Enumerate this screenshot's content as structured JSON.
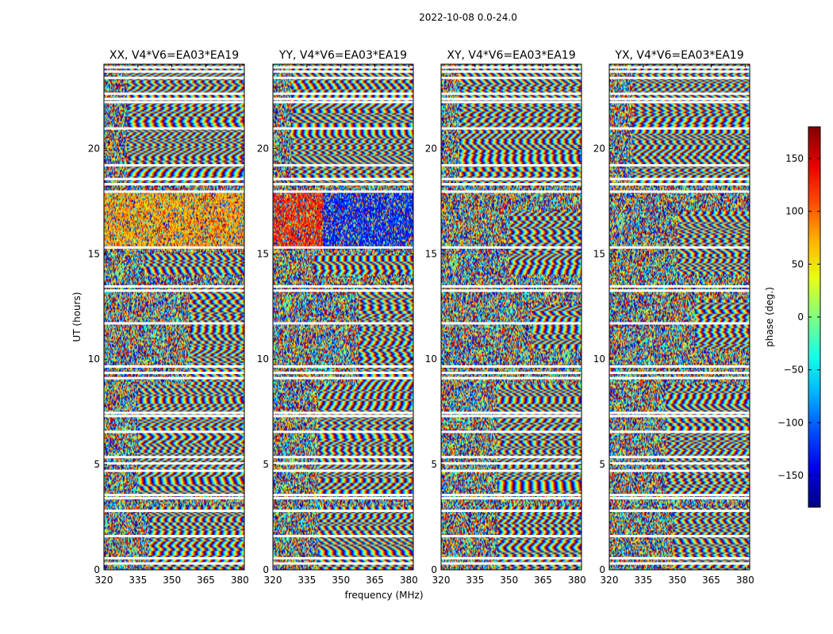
{
  "figure": {
    "suptitle": "2022-10-08 0.0-24.0"
  },
  "chart_data": {
    "type": "heatmap",
    "suptitle": "2022-10-08 0.0-24.0",
    "xlabel": "frequency (MHz)",
    "ylabel": "UT (hours)",
    "xlim": [
      320,
      382
    ],
    "ylim": [
      0,
      24
    ],
    "xticks": [
      320,
      335,
      350,
      365,
      380
    ],
    "yticks": [
      0,
      5,
      10,
      15,
      20
    ],
    "panels": [
      {
        "title": "XX, V4*V6=EA03*EA19",
        "fringes": [
          {
            "t0": 0,
            "t1": 3.0,
            "f0": 340
          },
          {
            "t0": 3.6,
            "t1": 8.8,
            "f0": 335
          },
          {
            "t0": 8.8,
            "t1": 13.5,
            "f0": 358
          },
          {
            "t0": 14.0,
            "t1": 15.0,
            "f0": 338
          },
          {
            "t0": 18.2,
            "t1": 24,
            "f0": 330
          }
        ]
      },
      {
        "title": "YY, V4*V6=EA03*EA19",
        "fringes": [
          {
            "t0": 0,
            "t1": 3.0,
            "f0": 340
          },
          {
            "t0": 3.6,
            "t1": 8.8,
            "f0": 340
          },
          {
            "t0": 8.8,
            "t1": 13.5,
            "f0": 358
          },
          {
            "t0": 14.0,
            "t1": 15.0,
            "f0": 338
          },
          {
            "t0": 18.2,
            "t1": 24,
            "f0": 328
          }
        ]
      },
      {
        "title": "XY, V4*V6=EA03*EA19",
        "fringes": [
          {
            "t0": 0,
            "t1": 3.0,
            "f0": 345
          },
          {
            "t0": 3.6,
            "t1": 8.8,
            "f0": 345
          },
          {
            "t0": 10.5,
            "t1": 12.5,
            "f0": 360
          },
          {
            "t0": 14.0,
            "t1": 17.0,
            "f0": 350
          },
          {
            "t0": 18.2,
            "t1": 24,
            "f0": 328
          }
        ]
      },
      {
        "title": "YX, V4*V6=EA03*EA19",
        "fringes": [
          {
            "t0": 0,
            "t1": 3.0,
            "f0": 348
          },
          {
            "t0": 3.6,
            "t1": 8.8,
            "f0": 345
          },
          {
            "t0": 10.5,
            "t1": 12.8,
            "f0": 358
          },
          {
            "t0": 14.0,
            "t1": 17.0,
            "f0": 350
          },
          {
            "t0": 18.2,
            "t1": 24,
            "f0": 330
          }
        ]
      }
    ],
    "flagged_ut_hours": [
      0.3,
      0.55,
      1.6,
      2.8,
      3.4,
      3.55,
      4.7,
      5.05,
      5.35,
      6.55,
      7.3,
      7.45,
      9.1,
      9.35,
      9.65,
      11.7,
      13.25,
      13.45,
      15.3,
      17.95,
      18.3,
      18.55,
      19.2,
      20.95,
      22.2,
      22.35,
      22.6,
      23.35,
      23.65,
      23.85
    ],
    "colorbar": {
      "label": "phase (deg.)",
      "range": [
        -180,
        180
      ],
      "ticks": [
        150,
        100,
        50,
        0,
        -50,
        -100,
        -150
      ],
      "colormap": "jet"
    }
  }
}
